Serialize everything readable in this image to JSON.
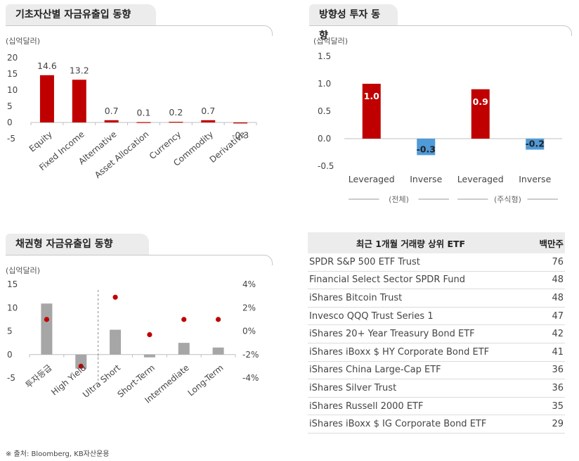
{
  "panels": {
    "asset_flows": {
      "title": "기초자산별 자금유출입 동향",
      "unit": "(십억달러)"
    },
    "direction_flows": {
      "title": "방향성 투자 동향",
      "unit": "(십억달러)"
    },
    "bond_flows": {
      "title": "채권형 자금유출입 동향",
      "unit": "(십억달러)"
    },
    "top_etf": {
      "col_name": "최근 1개월 거래량 상위 ETF",
      "col_value": "백만주"
    }
  },
  "footnote": "※ 출처: Bloomberg, KB자산운용",
  "colors": {
    "red": "#c00000",
    "blue": "#4f9ad8",
    "gray": "#a6a6a6",
    "axis": "#bfbfbf"
  },
  "chart_data": [
    {
      "type": "bar",
      "categories": [
        "Equity",
        "Fixed Income",
        "Alternative",
        "Asset Allocation",
        "Currency",
        "Commodity",
        "Derivative"
      ],
      "values": [
        14.6,
        13.2,
        0.7,
        0.1,
        0.2,
        0.7,
        -0.3
      ],
      "value_labels": [
        "14.6",
        "13.2",
        "0.7",
        "0.1",
        "0.2",
        "0.7",
        "-0.3"
      ],
      "yticks": [
        "20",
        "15",
        "10",
        "5",
        "0",
        "-5"
      ],
      "ylim": [
        -5,
        20
      ]
    },
    {
      "type": "bar",
      "categories": [
        "Leveraged",
        "Inverse",
        "Leveraged",
        "Inverse"
      ],
      "values": [
        1.0,
        -0.3,
        0.9,
        -0.2
      ],
      "value_labels": [
        "1.0",
        "-0.3",
        "0.9",
        "-0.2"
      ],
      "groups": [
        "(전체)",
        "(주식형)"
      ],
      "yticks": [
        "1.5",
        "1.0",
        "0.5",
        "0.0",
        "-0.5"
      ],
      "ylim": [
        -0.5,
        1.5
      ]
    },
    {
      "type": "bar",
      "categories": [
        "투자등급",
        "High Yield",
        "Ultra Short",
        "Short-Term",
        "Intermediate",
        "Long-Term"
      ],
      "bar_values": [
        10.9,
        -3.0,
        5.3,
        -0.6,
        2.5,
        1.5
      ],
      "dot_values": [
        1.0,
        -3.0,
        2.9,
        -0.3,
        1.0,
        1.0
      ],
      "yticks_left": [
        "15",
        "10",
        "5",
        "0",
        "-5"
      ],
      "yticks_right": [
        "4%",
        "2%",
        "0%",
        "-2%",
        "-4%"
      ],
      "ylim_left": [
        -5,
        15
      ],
      "ylim_right": [
        -4,
        4
      ]
    },
    {
      "type": "table",
      "rows": [
        {
          "name": "SPDR S&P 500 ETF Trust",
          "value": "76"
        },
        {
          "name": "Financial Select Sector SPDR Fund",
          "value": "48"
        },
        {
          "name": "iShares Bitcoin Trust",
          "value": "48"
        },
        {
          "name": "Invesco QQQ Trust Series 1",
          "value": "47"
        },
        {
          "name": "iShares 20+ Year Treasury Bond ETF",
          "value": "42"
        },
        {
          "name": "iShares iBoxx $ HY Corporate Bond ETF",
          "value": "41"
        },
        {
          "name": "iShares China Large-Cap ETF",
          "value": "36"
        },
        {
          "name": "iShares Silver Trust",
          "value": "36"
        },
        {
          "name": "iShares Russell 2000 ETF",
          "value": "35"
        },
        {
          "name": "iShares iBoxx $ IG Corporate Bond ETF",
          "value": "29"
        }
      ]
    }
  ]
}
